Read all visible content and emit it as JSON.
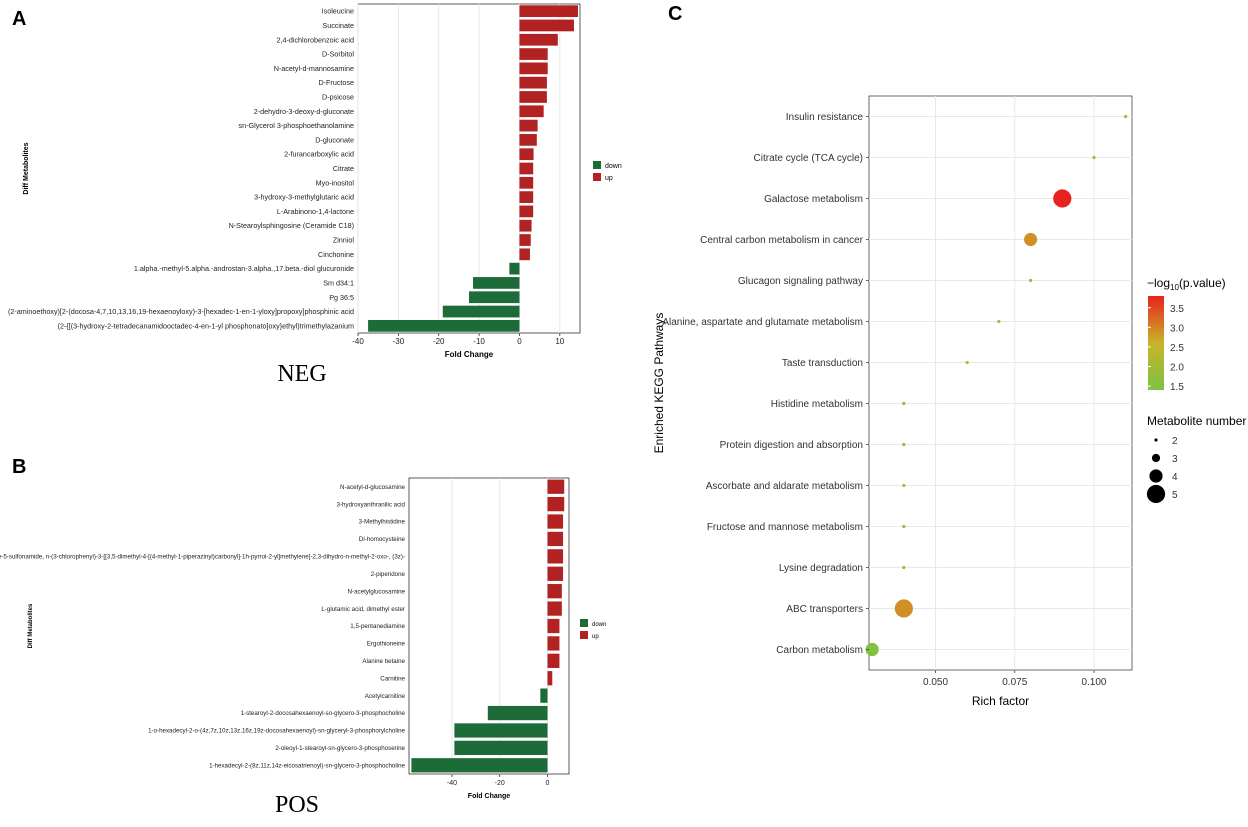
{
  "colors": {
    "up": "#b22222",
    "down": "#1e6b3a",
    "grid": "#e6e6e6",
    "bubble_low": "#7cc242",
    "bubble_mid": "#c9a82a",
    "bubble_high": "#e8221e"
  },
  "chart_data": [
    {
      "panel_label": "A",
      "type": "bar",
      "orientation": "horizontal",
      "caption": "NEG",
      "xlabel": "Fold Change",
      "ylabel": "Diff Metabolites",
      "xlim": [
        -40,
        15
      ],
      "xticks": [
        -40,
        -30,
        -20,
        -10,
        0,
        10
      ],
      "legend": [
        {
          "name": "down",
          "color": "#1e6b3a"
        },
        {
          "name": "up",
          "color": "#b22222"
        }
      ],
      "categories": [
        "Isoleucine",
        "Succinate",
        "2,4-dichlorobenzoic acid",
        "D-Sorbitol",
        "N-acetyl-d-mannosamine",
        "D-Fructose",
        "D-psicose",
        "2-dehydro-3-deoxy-d-gluconate",
        "sn-Glycerol 3-phosphoethanolamine",
        "D-gluconate",
        "2-furancarboxylic acid",
        "Citrate",
        "Myo-inositol",
        "3-hydroxy-3-methylglutaric acid",
        "L-Arabinono-1,4-lactone",
        "N-Stearoylsphingosine (Ceramide C18)",
        "Zinniol",
        "Cinchonine",
        "1.alpha.-methyl-5.alpha.-androstan-3.alpha.,17.beta.-diol glucuronide",
        "Sm d34:1",
        "Pg 36:5",
        "(2-aminoethoxy)[2-(docosa-4,7,10,13,16,19-hexaenoyloxy)-3-[hexadec-1-en-1-yloxy]propoxy]phosphinic acid",
        "(2-{[(3-hydroxy-2-tetradecanamidooctadec-4-en-1-yl phosphonato]oxy}ethyl)trimethylazanium"
      ],
      "values": [
        14.5,
        13.5,
        9.5,
        7,
        7,
        6.8,
        6.8,
        6,
        4.5,
        4.3,
        3.5,
        3.4,
        3.4,
        3.4,
        3.4,
        3.0,
        2.8,
        2.6,
        -2.5,
        -11.5,
        -12.5,
        -19,
        -37.5
      ]
    },
    {
      "panel_label": "B",
      "type": "bar",
      "orientation": "horizontal",
      "caption": "POS",
      "xlabel": "Fold Change",
      "ylabel": "Diff Metabolites",
      "xlim": [
        -58,
        9
      ],
      "xticks": [
        -40,
        -20,
        0
      ],
      "legend": [
        {
          "name": "down",
          "color": "#1e6b3a"
        },
        {
          "name": "up",
          "color": "#b22222"
        }
      ],
      "categories": [
        "N-acetyl-d-glucosamine",
        "3-hydroxyanthranilic acid",
        "3-Methylhistidine",
        "Dl-homocysteine",
        "1h-indole-5-sulfonamide, n-(3-chlorophenyl)-3-[[3,5-dimethyl-4-[(4-methyl-1-piperazinyl)carbonyl]-1h-pyrrol-2-yl]methylene]-2,3-dihydro-n-methyl-2-oxo-, (3z)-",
        "2-piperidone",
        "N-acetylglucosamine",
        "L-glutamic acid, dimethyl ester",
        "1,5-pentanediamine",
        "Ergothioneine",
        "Alanine betaine",
        "Carnitine",
        "Acetylcarnitine",
        "1-stearoyl-2-docosahexaenoyl-sn-glycero-3-phosphocholine",
        "1-o-hexadecyl-2-o-(4z,7z,10z,13z,16z,19z-docosahexaenoyl)-sn-glyceryl-3-phosphorylcholine",
        "2-oleoyl-1-stearoyl-sn-glycero-3-phosphoserine",
        "1-hexadecyl-2-(8z,11z,14z-eicosatrienoyl)-sn-glycero-3-phosphocholine"
      ],
      "values": [
        7,
        7,
        6.5,
        6.5,
        6.5,
        6.5,
        6,
        6,
        5,
        5,
        5,
        2,
        -3,
        -25,
        -39,
        -39,
        -57
      ]
    },
    {
      "panel_label": "C",
      "type": "scatter",
      "subtype": "bubble",
      "xlabel": "Rich factor",
      "ylabel": "Enriched KEGG Pathways",
      "xlim": [
        0.029,
        0.112
      ],
      "xticks": [
        0.05,
        0.075,
        0.1
      ],
      "xtick_labels": [
        "0.050",
        "0.075",
        "0.100"
      ],
      "color_legend": {
        "title_prefix": "−log",
        "title_sub": "10",
        "title_suffix": "(p.value)",
        "min": 1.4,
        "max": 3.8,
        "ticks": [
          1.5,
          2.0,
          2.5,
          3.0,
          3.5
        ],
        "tick_labels": [
          "1.5",
          "2.0",
          "2.5",
          "3.0",
          "3.5"
        ]
      },
      "size_legend": {
        "title": "Metabolite number",
        "values": [
          2,
          3,
          4,
          5
        ]
      },
      "pathways": [
        "Insulin resistance",
        "Citrate cycle (TCA cycle)",
        "Galactose metabolism",
        "Central carbon metabolism in cancer",
        "Glucagon signaling pathway",
        "Alanine, aspartate and glutamate metabolism",
        "Taste transduction",
        "Histidine metabolism",
        "Protein digestion and absorption",
        "Ascorbate and aldarate metabolism",
        "Fructose and mannose metabolism",
        "Lysine degradation",
        "ABC transporters",
        "Carbon metabolism"
      ],
      "rich_factor": [
        0.11,
        0.1,
        0.09,
        0.08,
        0.08,
        0.07,
        0.06,
        0.04,
        0.04,
        0.04,
        0.04,
        0.04,
        0.04,
        0.03
      ],
      "neg_log10_p": [
        2.0,
        2.1,
        3.8,
        2.9,
        1.8,
        2.2,
        2.3,
        1.9,
        1.9,
        2.0,
        1.8,
        2.0,
        2.9,
        1.5
      ],
      "metabolite_number": [
        2,
        2,
        5,
        4,
        2,
        2,
        2,
        2,
        2,
        2,
        2,
        2,
        5,
        4
      ]
    }
  ]
}
